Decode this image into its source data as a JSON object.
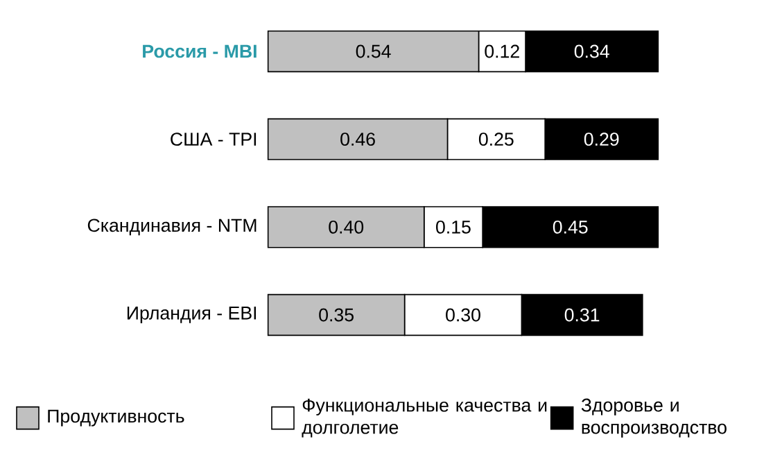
{
  "chart_data": {
    "type": "bar",
    "orientation": "horizontal",
    "stacked": true,
    "legend": "bottom",
    "categories": [
      "Россия - MBI",
      "США - TPI",
      "Скандинавия - NTM",
      "Ирландия - EBI"
    ],
    "series": [
      {
        "name": "Продуктивность",
        "color": "#c0c0c0",
        "values": [
          0.54,
          0.46,
          0.4,
          0.35
        ],
        "value_labels": [
          "0.54",
          "0.46",
          "0.40",
          "0.35"
        ]
      },
      {
        "name": "Функциональные качества и долголетие",
        "color": "#ffffff",
        "values": [
          0.12,
          0.25,
          0.15,
          0.3
        ],
        "value_labels": [
          "0.12",
          "0.25",
          "0.15",
          "0.30"
        ]
      },
      {
        "name": "Здоровье и воспроизводство",
        "color": "#000000",
        "values": [
          0.34,
          0.29,
          0.45,
          0.31
        ],
        "value_labels": [
          "0.34",
          "0.29",
          "0.45",
          "0.31"
        ]
      }
    ]
  }
}
